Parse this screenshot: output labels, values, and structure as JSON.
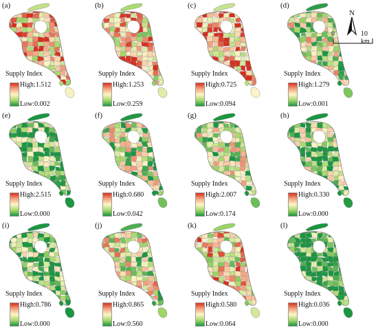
{
  "legend_title": "Supply Index",
  "color_ramp": [
    "#d7301f",
    "#f4a582",
    "#fdf5c8",
    "#a6d96a",
    "#1a9641"
  ],
  "panels": [
    {
      "label": "(a)",
      "high": "High:1.512",
      "low": "Low:0.002",
      "level": 0.68,
      "seed": 11
    },
    {
      "label": "(b)",
      "high": "High:1.253",
      "low": "Low:0.259",
      "level": 0.62,
      "seed": 23
    },
    {
      "label": "(c)",
      "high": "High:0.725",
      "low": "Low:0.094",
      "level": 0.7,
      "seed": 37
    },
    {
      "label": "(d)",
      "high": "High:1.279",
      "low": "Low:0.001",
      "level": 0.38,
      "seed": 41
    },
    {
      "label": "(e)",
      "high": "High:2.515",
      "low": "Low:0.000",
      "level": 0.14,
      "seed": 53
    },
    {
      "label": "(f)",
      "high": "High:0.680",
      "low": "Low:0.042",
      "level": 0.36,
      "seed": 67
    },
    {
      "label": "(g)",
      "high": "High:2.007",
      "low": "Low:0.174",
      "level": 0.35,
      "seed": 71
    },
    {
      "label": "(h)",
      "high": "High:0.330",
      "low": "Low:0.000",
      "level": 0.22,
      "seed": 83
    },
    {
      "label": "(i)",
      "high": "High:0.786",
      "low": "Low:0.000",
      "level": 0.16,
      "seed": 97
    },
    {
      "label": "(j)",
      "high": "High:0.865",
      "low": "Low:0.560",
      "level": 0.44,
      "seed": 101
    },
    {
      "label": "(k)",
      "high": "High:0.580",
      "low": "Low:0.064",
      "level": 0.58,
      "seed": 113
    },
    {
      "label": "(l)",
      "high": "High:0.036",
      "low": "Low:0.000",
      "level": 0.04,
      "seed": 127
    }
  ],
  "north_label": "N",
  "scale": {
    "start": "0",
    "end": "10 km"
  }
}
